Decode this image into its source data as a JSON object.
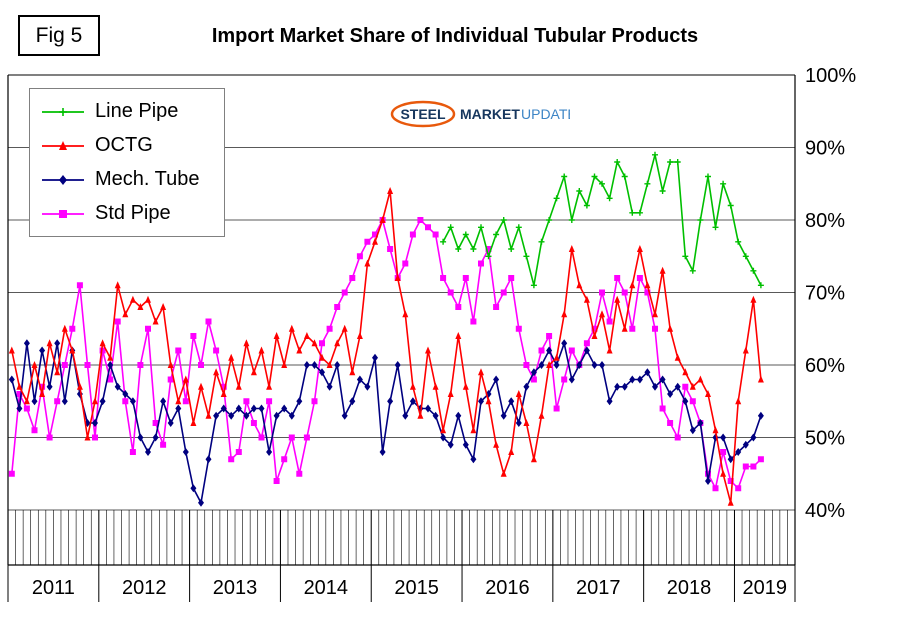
{
  "header": {
    "fig_label": "Fig 5",
    "title": "Import Market Share of Individual Tubular Products"
  },
  "logo": {
    "word1": "STEEL",
    "word2": "MARKET",
    "word3": "UPDATE",
    "navy_color": "#17375e",
    "light_color": "#3d85c6",
    "swoosh_color": "#e8590c"
  },
  "chart_data": {
    "type": "line",
    "title": "Import Market Share of Individual Tubular Products",
    "x_start": "2011-01",
    "x_end": "2019-04",
    "months": 100,
    "year_labels": [
      "2011",
      "2012",
      "2013",
      "2014",
      "2015",
      "2016",
      "2017",
      "2018",
      "2019"
    ],
    "ylabel_ticks": [
      "100%",
      "90%",
      "80%",
      "70%",
      "60%",
      "50%",
      "40%"
    ],
    "ylim": [
      40,
      100
    ],
    "grid": "horizontal",
    "legend_position": "top-left",
    "series": [
      {
        "name": "Line Pipe",
        "color": "#00bf00",
        "marker": "cross",
        "values": [
          null,
          null,
          null,
          null,
          null,
          null,
          null,
          null,
          null,
          null,
          null,
          null,
          null,
          null,
          null,
          null,
          null,
          null,
          null,
          null,
          null,
          null,
          null,
          null,
          null,
          null,
          null,
          null,
          null,
          null,
          null,
          null,
          null,
          null,
          null,
          null,
          null,
          null,
          null,
          null,
          null,
          null,
          null,
          null,
          null,
          null,
          null,
          null,
          null,
          null,
          null,
          null,
          null,
          null,
          null,
          null,
          null,
          77,
          79,
          76,
          78,
          76,
          79,
          75,
          78,
          80,
          76,
          79,
          75,
          71,
          77,
          80,
          83,
          86,
          80,
          84,
          82,
          86,
          85,
          83,
          88,
          86,
          81,
          81,
          85,
          89,
          84,
          88,
          88,
          75,
          73,
          80,
          86,
          79,
          85,
          82,
          77,
          75,
          73,
          71
        ]
      },
      {
        "name": "OCTG",
        "color": "#ff0000",
        "marker": "triangle",
        "values": [
          62,
          57,
          55,
          60,
          56,
          63,
          59,
          65,
          62,
          57,
          50,
          55,
          63,
          61,
          71,
          67,
          69,
          68,
          69,
          66,
          68,
          60,
          55,
          58,
          52,
          57,
          53,
          59,
          56,
          61,
          57,
          63,
          59,
          62,
          57,
          64,
          60,
          65,
          62,
          64,
          63,
          61,
          60,
          63,
          65,
          59,
          64,
          74,
          77,
          80,
          84,
          72,
          67,
          57,
          53,
          62,
          57,
          51,
          56,
          64,
          57,
          51,
          59,
          55,
          49,
          45,
          48,
          56,
          52,
          47,
          53,
          60,
          61,
          67,
          76,
          71,
          69,
          64,
          67,
          62,
          69,
          65,
          71,
          76,
          71,
          67,
          73,
          65,
          61,
          59,
          57,
          58,
          56,
          51,
          45,
          41,
          55,
          62,
          69,
          58
        ]
      },
      {
        "name": "Mech. Tube",
        "color": "#000080",
        "marker": "diamond",
        "values": [
          58,
          54,
          63,
          55,
          62,
          57,
          63,
          55,
          62,
          56,
          52,
          52,
          55,
          60,
          57,
          56,
          55,
          50,
          48,
          50,
          55,
          52,
          54,
          48,
          43,
          41,
          47,
          53,
          54,
          53,
          54,
          53,
          54,
          54,
          48,
          53,
          54,
          53,
          55,
          60,
          60,
          59,
          57,
          60,
          53,
          55,
          58,
          57,
          61,
          48,
          55,
          60,
          53,
          55,
          54,
          54,
          53,
          50,
          49,
          53,
          49,
          47,
          55,
          56,
          58,
          53,
          55,
          52,
          57,
          59,
          60,
          62,
          60,
          63,
          58,
          60,
          62,
          60,
          60,
          55,
          57,
          57,
          58,
          58,
          59,
          57,
          58,
          56,
          57,
          55,
          51,
          52,
          44,
          50,
          50,
          47,
          48,
          49,
          50,
          53
        ]
      },
      {
        "name": "Std Pipe",
        "color": "#ff00ff",
        "marker": "square",
        "values": [
          45,
          56,
          54,
          51,
          57,
          50,
          55,
          60,
          65,
          71,
          60,
          50,
          62,
          58,
          66,
          55,
          48,
          60,
          65,
          52,
          49,
          58,
          62,
          55,
          64,
          60,
          66,
          62,
          57,
          47,
          48,
          55,
          52,
          50,
          55,
          44,
          47,
          50,
          45,
          50,
          55,
          63,
          65,
          68,
          70,
          72,
          75,
          77,
          78,
          80,
          76,
          72,
          74,
          78,
          80,
          79,
          78,
          72,
          70,
          68,
          72,
          66,
          74,
          76,
          68,
          70,
          72,
          65,
          60,
          58,
          62,
          64,
          54,
          58,
          62,
          60,
          63,
          65,
          70,
          66,
          72,
          70,
          65,
          72,
          70,
          65,
          54,
          52,
          50,
          57,
          55,
          52,
          45,
          43,
          48,
          44,
          43,
          46,
          46,
          47
        ]
      }
    ]
  }
}
